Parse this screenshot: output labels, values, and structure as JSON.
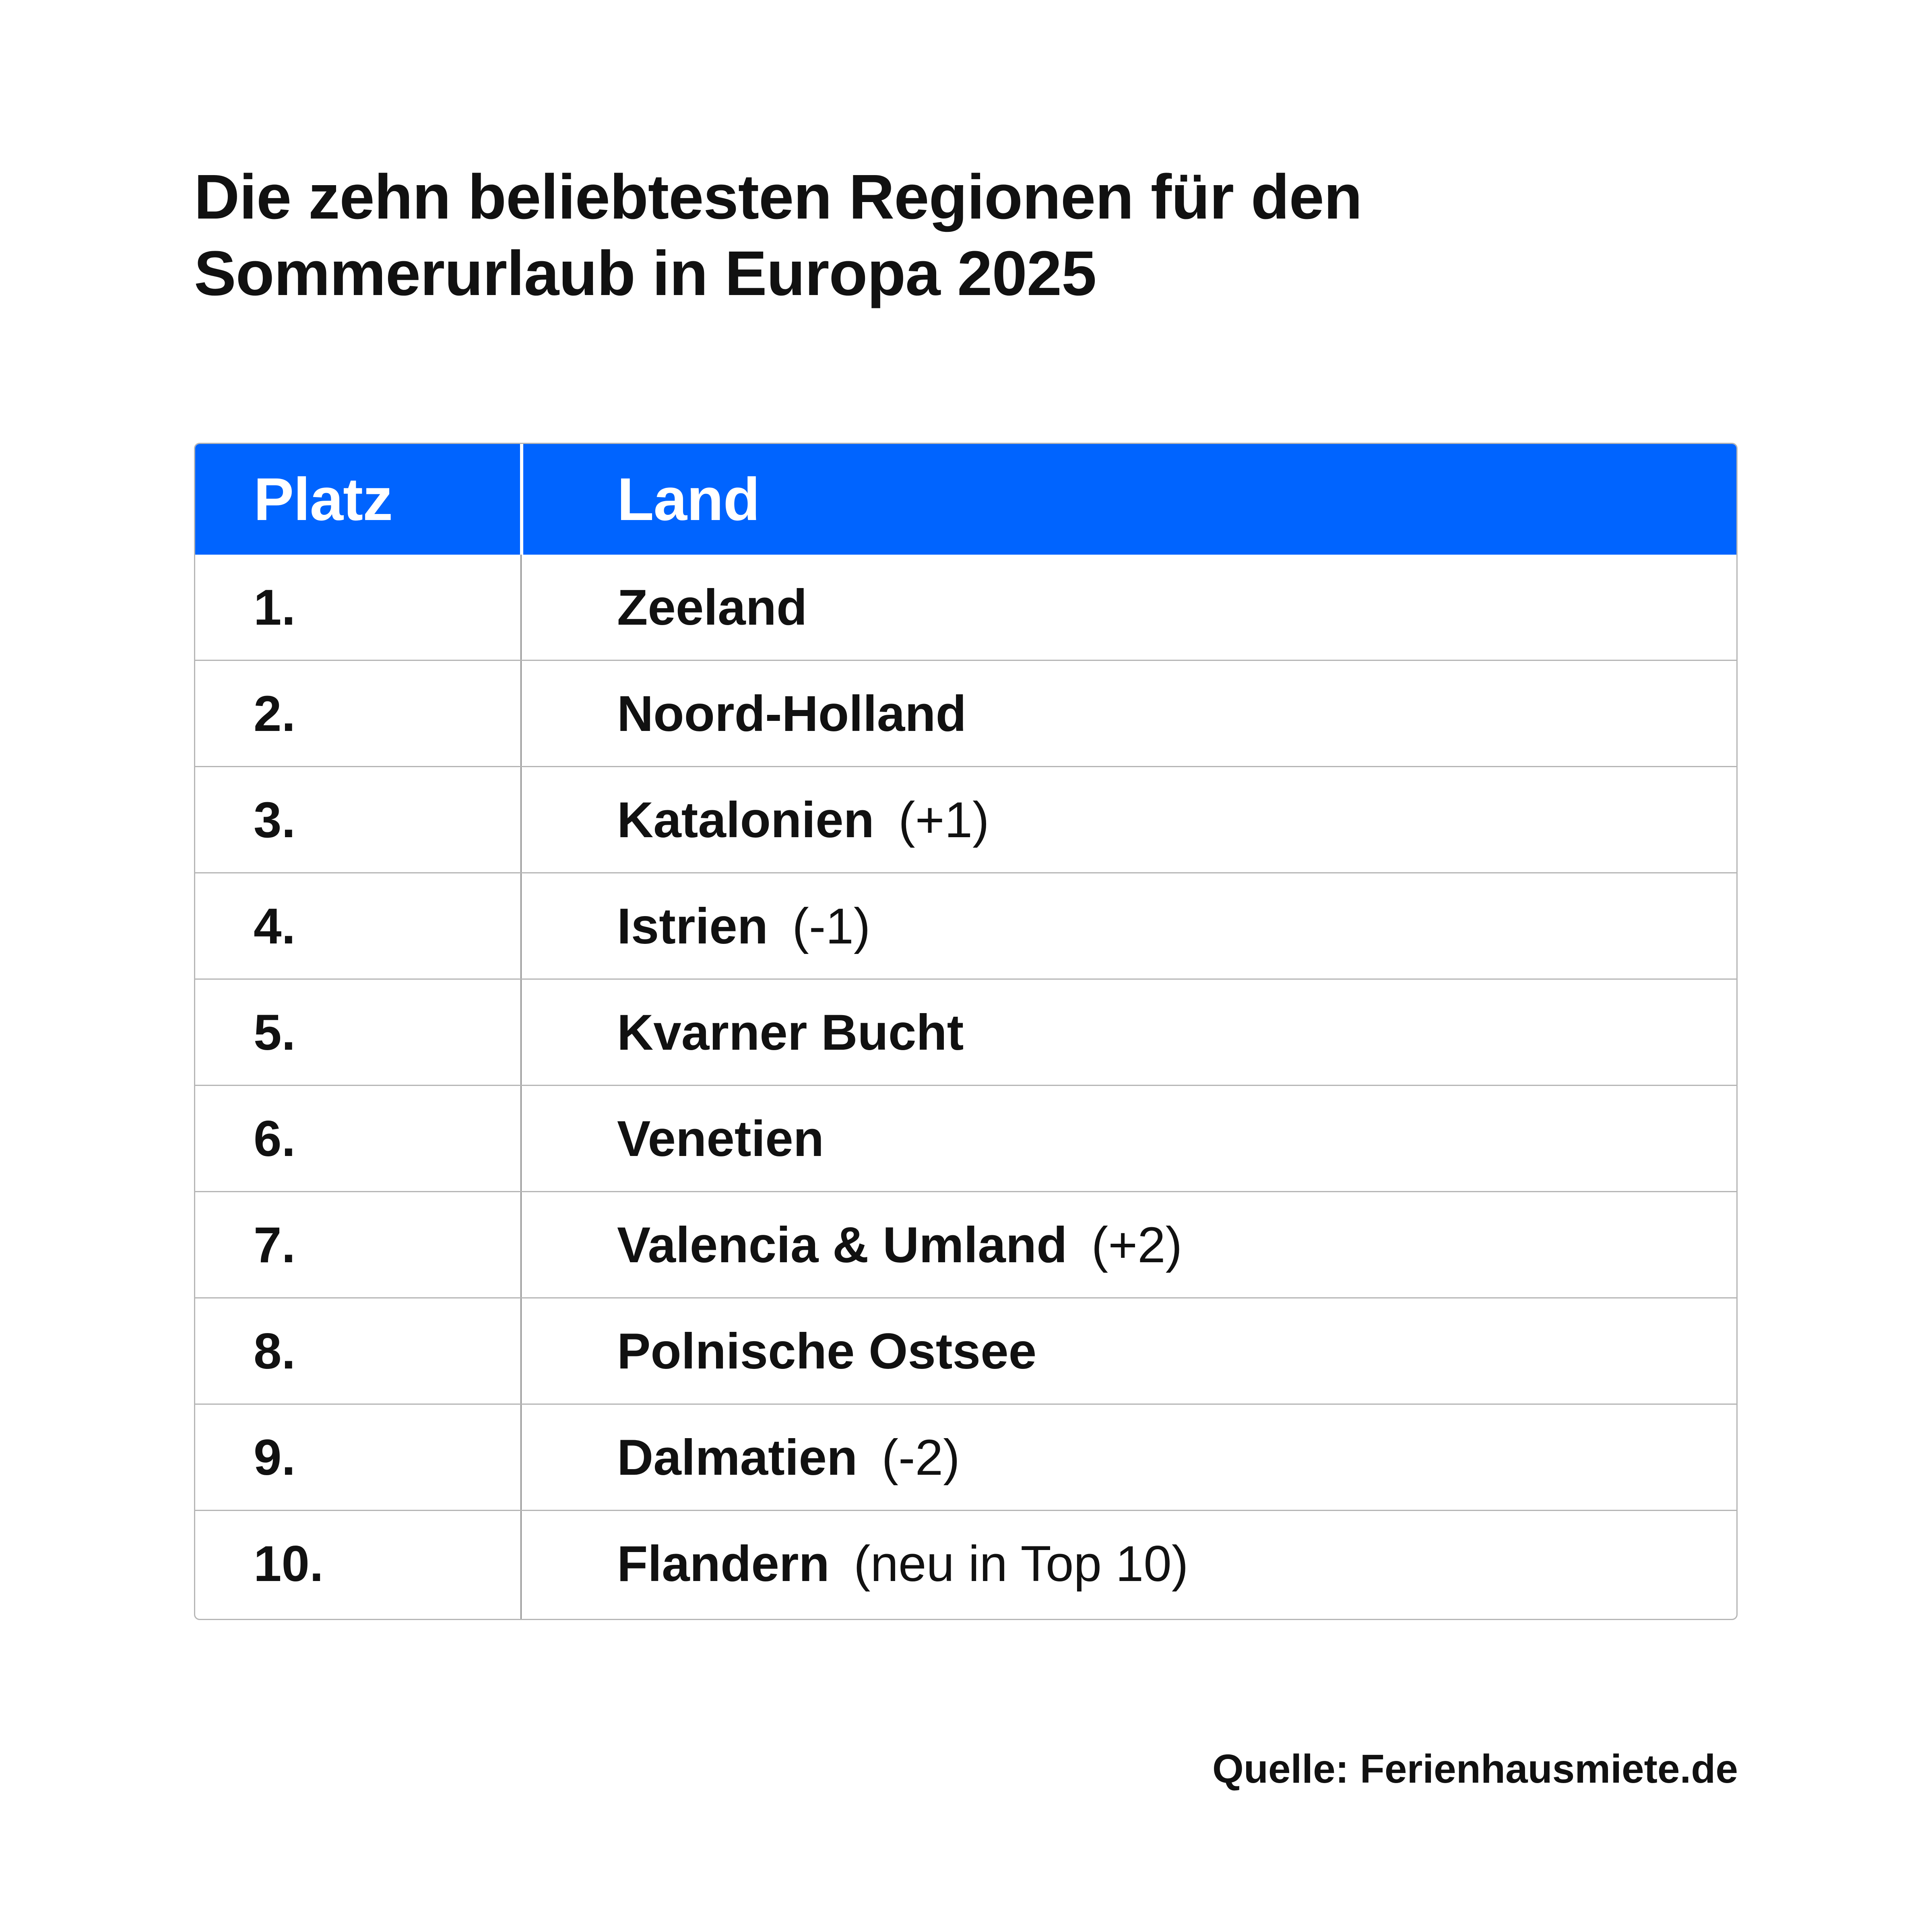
{
  "chart_data": {
    "type": "table",
    "title_lines": [
      "Die zehn beliebtesten Regionen für den",
      "Sommerurlaub in Europa 2025"
    ],
    "columns": [
      "Platz",
      "Land"
    ],
    "rows": [
      {
        "rank": "1.",
        "region": "Zeeland",
        "change": ""
      },
      {
        "rank": "2.",
        "region": "Noord-Holland",
        "change": ""
      },
      {
        "rank": "3.",
        "region": "Katalonien",
        "change": "(+1)"
      },
      {
        "rank": "4.",
        "region": "Istrien",
        "change": "(-1)"
      },
      {
        "rank": "5.",
        "region": "Kvarner Bucht",
        "change": ""
      },
      {
        "rank": "6.",
        "region": "Venetien",
        "change": ""
      },
      {
        "rank": "7.",
        "region": "Valencia & Umland",
        "change": "(+2)"
      },
      {
        "rank": "8.",
        "region": "Polnische Ostsee",
        "change": ""
      },
      {
        "rank": "9.",
        "region": "Dalmatien",
        "change": "(-2)"
      },
      {
        "rank": "10.",
        "region": "Flandern",
        "change": "(neu in Top 10)"
      }
    ],
    "source": "Quelle: Ferienhausmiete.de"
  },
  "colors": {
    "header_background": "#0064ff",
    "header_text": "#ffffff",
    "grid": "#b5b5b5",
    "text": "#111111"
  }
}
